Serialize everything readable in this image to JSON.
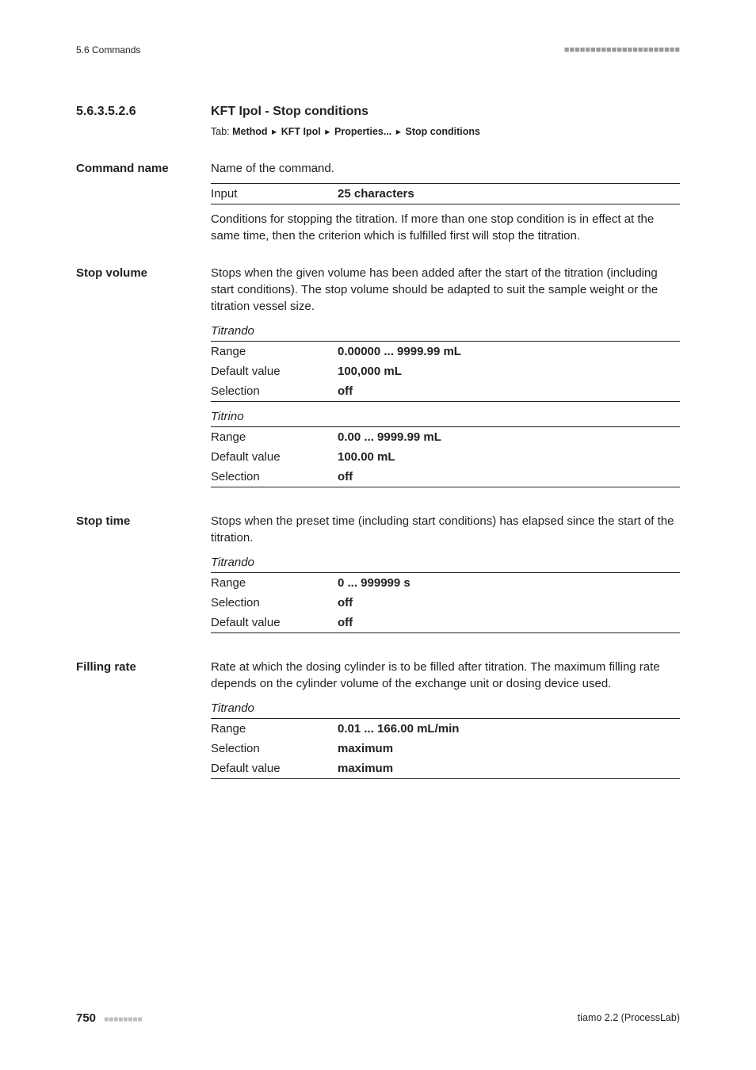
{
  "header": {
    "left": "5.6 Commands",
    "dots": "■■■■■■■■■■■■■■■■■■■■■■"
  },
  "section": {
    "number": "5.6.3.5.2.6",
    "title": "KFT Ipol - Stop conditions",
    "tab": {
      "label": "Tab: ",
      "parts": [
        "Method",
        "KFT Ipol",
        "Properties...",
        "Stop conditions"
      ]
    }
  },
  "fields": [
    {
      "label": "Command name",
      "desc": "Name of the command.",
      "tables": [
        {
          "subhead": null,
          "rows": [
            {
              "l": "Input",
              "r": "25 characters",
              "topRule": true,
              "botRule": true
            }
          ]
        }
      ],
      "after": "Conditions for stopping the titration. If more than one stop condition is in effect at the same time, then the criterion which is fulfilled first will stop the titration."
    },
    {
      "label": "Stop volume",
      "desc": "Stops when the given volume has been added after the start of the titration (including start conditions). The stop volume should be adapted to suit the sample weight or the titration vessel size.",
      "tables": [
        {
          "subhead": "Titrando",
          "rows": [
            {
              "l": "Range",
              "r": "0.00000 ... 9999.99 mL",
              "topRule": true
            },
            {
              "l": "Default value",
              "r": "100,000 mL"
            },
            {
              "l": "Selection",
              "r": "off",
              "botRule": true
            }
          ]
        },
        {
          "subhead": "Titrino",
          "rows": [
            {
              "l": "Range",
              "r": "0.00 ... 9999.99 mL",
              "topRule": true
            },
            {
              "l": "Default value",
              "r": "100.00 mL"
            },
            {
              "l": "Selection",
              "r": "off",
              "botRule": true
            }
          ]
        }
      ]
    },
    {
      "label": "Stop time",
      "desc": "Stops when the preset time (including start conditions) has elapsed since the start of the titration.",
      "tables": [
        {
          "subhead": "Titrando",
          "rows": [
            {
              "l": "Range",
              "r": "0 ... 999999 s",
              "topRule": true
            },
            {
              "l": "Selection",
              "r": "off"
            },
            {
              "l": "Default value",
              "r": "off",
              "botRule": true
            }
          ]
        }
      ]
    },
    {
      "label": "Filling rate",
      "desc": "Rate at which the dosing cylinder is to be filled after titration. The maximum filling rate depends on the cylinder volume of the exchange unit or dosing device used.",
      "tables": [
        {
          "subhead": "Titrando",
          "rows": [
            {
              "l": "Range",
              "r": "0.01 ... 166.00 mL/min",
              "topRule": true
            },
            {
              "l": "Selection",
              "r": "maximum"
            },
            {
              "l": "Default value",
              "r": "maximum",
              "botRule": true
            }
          ]
        }
      ]
    }
  ],
  "footer": {
    "pageNum": "750",
    "dots": "■■■■■■■■",
    "right": "tiamo 2.2 (ProcessLab)"
  }
}
